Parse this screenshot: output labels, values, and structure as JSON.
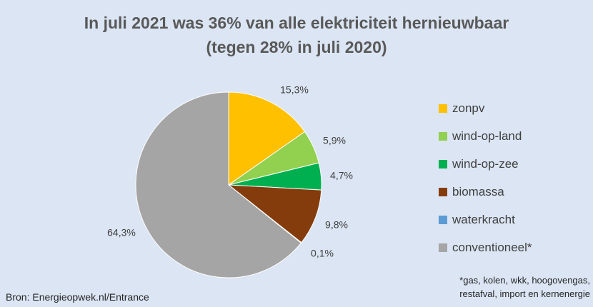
{
  "chart_data": {
    "type": "pie",
    "title": "In juli 2021 was 36% van alle elektriciteit hernieuwbaar",
    "subtitle": "(tegen 28% in juli 2020)",
    "categories": [
      "zonpv",
      "wind-op-land",
      "wind-op-zee",
      "biomassa",
      "waterkracht",
      "conventioneel*"
    ],
    "values": [
      15.3,
      5.9,
      4.7,
      9.8,
      0.1,
      64.3
    ],
    "data_labels": [
      "15,3%",
      "5,9%",
      "4,7%",
      "9,8%",
      "0,1%",
      "64,3%"
    ],
    "colors": [
      "#ffc000",
      "#92d050",
      "#00b050",
      "#843c0c",
      "#5b9bd5",
      "#a5a5a5"
    ],
    "legend_position": "right"
  },
  "footnote": {
    "line1": "*gas, kolen, wkk, hoogovengas,",
    "line2": "restafval, import en kernenergie"
  },
  "source": "Bron: Energieopwek.nl/Entrance"
}
